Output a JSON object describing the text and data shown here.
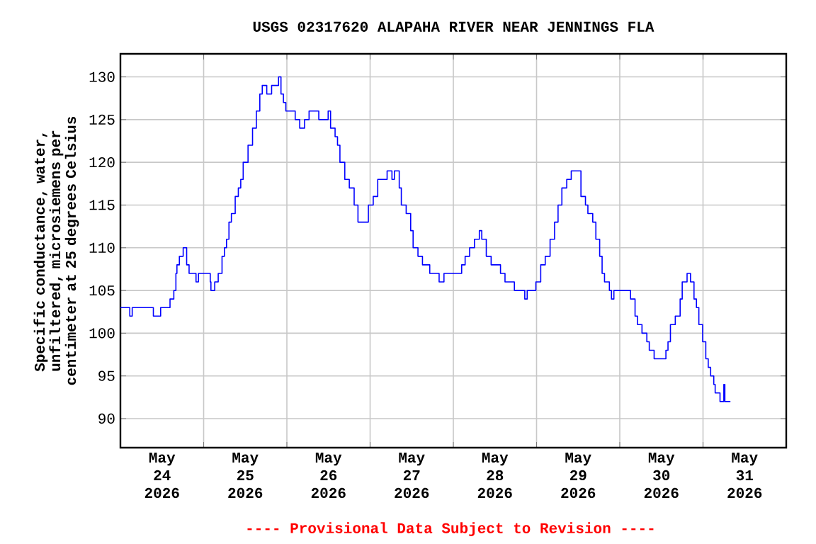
{
  "chart_data": {
    "type": "step",
    "title": "USGS 02317620 ALAPAHA RIVER NEAR JENNINGS FLA",
    "ylabel": "Specific conductance, water, unfiltered, microsiemens per centimeter at 25 degrees Celsius",
    "annotations": [
      "---- Provisional Data Subject to Revision ----"
    ],
    "x": [
      "2026-05-24T00:00",
      "2026-05-24T02:42",
      "2026-05-24T03:24",
      "2026-05-24T09:30",
      "2026-05-24T11:36",
      "2026-05-24T14:18",
      "2026-05-24T15:24",
      "2026-05-24T16:00",
      "2026-05-24T16:18",
      "2026-05-24T17:00",
      "2026-05-24T18:06",
      "2026-05-24T19:06",
      "2026-05-24T19:48",
      "2026-05-24T21:48",
      "2026-05-24T22:30",
      "2026-05-25T00:48",
      "2026-05-25T01:54",
      "2026-05-25T02:06",
      "2026-05-25T03:12",
      "2026-05-25T04:12",
      "2026-05-25T05:18",
      "2026-05-25T06:00",
      "2026-05-25T06:36",
      "2026-05-25T07:18",
      "2026-05-25T08:00",
      "2026-05-25T09:06",
      "2026-05-25T10:00",
      "2026-05-25T10:42",
      "2026-05-25T11:24",
      "2026-05-25T12:48",
      "2026-05-25T14:06",
      "2026-05-25T15:12",
      "2026-05-25T16:12",
      "2026-05-25T16:54",
      "2026-05-25T18:12",
      "2026-05-25T19:36",
      "2026-05-25T21:36",
      "2026-05-25T22:18",
      "2026-05-25T23:00",
      "2026-05-25T23:42",
      "2026-05-26T02:24",
      "2026-05-26T03:42",
      "2026-05-26T05:06",
      "2026-05-26T06:24",
      "2026-05-26T09:12",
      "2026-05-26T11:54",
      "2026-05-26T12:36",
      "2026-05-26T13:54",
      "2026-05-26T14:36",
      "2026-05-26T15:18",
      "2026-05-26T16:42",
      "2026-05-26T18:00",
      "2026-05-26T19:24",
      "2026-05-26T20:30",
      "2026-05-26T22:06",
      "2026-05-26T23:30",
      "2026-05-27T00:54",
      "2026-05-27T02:12",
      "2026-05-27T04:54",
      "2026-05-27T06:18",
      "2026-05-27T07:00",
      "2026-05-27T08:24",
      "2026-05-27T09:00",
      "2026-05-27T10:24",
      "2026-05-27T11:42",
      "2026-05-27T12:24",
      "2026-05-27T13:48",
      "2026-05-27T15:06",
      "2026-05-27T17:12",
      "2026-05-27T19:54",
      "2026-05-27T21:18",
      "2026-05-28T02:00",
      "2026-05-28T02:24",
      "2026-05-28T03:24",
      "2026-05-28T04:42",
      "2026-05-28T06:06",
      "2026-05-28T07:30",
      "2026-05-28T08:12",
      "2026-05-28T09:30",
      "2026-05-28T10:54",
      "2026-05-28T13:36",
      "2026-05-28T14:54",
      "2026-05-28T17:36",
      "2026-05-28T20:36",
      "2026-05-28T21:18",
      "2026-05-28T23:48",
      "2026-05-29T01:12",
      "2026-05-29T02:30",
      "2026-05-29T03:54",
      "2026-05-29T05:12",
      "2026-05-29T06:12",
      "2026-05-29T07:18",
      "2026-05-29T08:42",
      "2026-05-29T10:00",
      "2026-05-29T12:48",
      "2026-05-29T14:06",
      "2026-05-29T14:48",
      "2026-05-29T16:12",
      "2026-05-29T17:06",
      "2026-05-29T18:12",
      "2026-05-29T18:54",
      "2026-05-29T19:36",
      "2026-05-29T21:00",
      "2026-05-29T21:36",
      "2026-05-29T22:18",
      "2026-05-30T03:06",
      "2026-05-30T04:24",
      "2026-05-30T05:06",
      "2026-05-30T06:24",
      "2026-05-30T07:48",
      "2026-05-30T08:30",
      "2026-05-30T09:54",
      "2026-05-30T13:18",
      "2026-05-30T13:54",
      "2026-05-30T14:36",
      "2026-05-30T16:00",
      "2026-05-30T17:24",
      "2026-05-30T18:00",
      "2026-05-30T19:24",
      "2026-05-30T20:24",
      "2026-05-30T21:24",
      "2026-05-30T22:06",
      "2026-05-30T22:48",
      "2026-05-30T23:54",
      "2026-05-31T00:48",
      "2026-05-31T01:30",
      "2026-05-31T02:12",
      "2026-05-31T03:06",
      "2026-05-31T03:30",
      "2026-05-31T04:54",
      "2026-05-31T06:00",
      "2026-05-31T06:18",
      "2026-05-31T07:54"
    ],
    "series": [
      {
        "color": "#0000ff",
        "values": [
          103,
          102,
          103,
          102,
          103,
          104,
          105,
          107,
          108,
          109,
          110,
          108,
          107,
          106,
          107,
          107,
          106,
          105,
          106,
          107,
          109,
          110,
          111,
          113,
          114,
          116,
          117,
          118,
          120,
          122,
          124,
          126,
          128,
          129,
          128,
          129,
          130,
          128,
          127,
          126,
          125,
          124,
          125,
          126,
          125,
          126,
          124,
          123,
          122,
          120,
          118,
          117,
          115,
          113,
          113,
          115,
          116,
          118,
          119,
          118,
          119,
          117,
          115,
          114,
          112,
          110,
          109,
          108,
          107,
          106,
          107,
          107,
          108,
          109,
          110,
          111,
          112,
          111,
          109,
          108,
          107,
          106,
          105,
          104,
          105,
          106,
          108,
          109,
          111,
          113,
          115,
          117,
          118,
          119,
          116,
          115,
          114,
          113,
          111,
          109,
          107,
          106,
          105,
          104,
          105,
          104,
          102,
          101,
          100,
          99,
          98,
          97,
          98,
          99,
          101,
          102,
          104,
          106,
          107,
          106,
          104,
          103,
          101,
          99,
          97,
          96,
          95,
          94,
          93,
          92,
          94,
          92,
          92
        ]
      }
    ],
    "xlim": [
      "2026-05-24",
      "2026-06-01"
    ],
    "xticks": [
      {
        "value": "2026-05-24",
        "label": null
      },
      {
        "value": "2026-05-25",
        "label": null
      },
      {
        "value": "2026-05-26",
        "label": null
      },
      {
        "value": "2026-05-27",
        "label": null
      },
      {
        "value": "2026-05-28",
        "label": null
      },
      {
        "value": "2026-05-29",
        "label": null
      },
      {
        "value": "2026-05-30",
        "label": null
      },
      {
        "value": "2026-05-31",
        "label": null
      },
      {
        "value": "2026-06-01",
        "label": null
      },
      {
        "value": "2026-05-24T12:00",
        "label": "May 24 2026"
      },
      {
        "value": "2026-05-25T12:00",
        "label": "May 25 2026"
      },
      {
        "value": "2026-05-26T12:00",
        "label": "May 26 2026"
      },
      {
        "value": "2026-05-27T12:00",
        "label": "May 27 2026"
      },
      {
        "value": "2026-05-28T12:00",
        "label": "May 28 2026"
      },
      {
        "value": "2026-05-29T12:00",
        "label": "May 29 2026"
      },
      {
        "value": "2026-05-30T12:00",
        "label": "May 30 2026"
      },
      {
        "value": "2026-05-31T12:00",
        "label": "May 31 2026"
      }
    ],
    "ylim": [
      86.6,
      132.7
    ],
    "yticks": [
      90,
      95,
      100,
      105,
      110,
      115,
      120,
      125,
      130
    ],
    "grid": true
  }
}
